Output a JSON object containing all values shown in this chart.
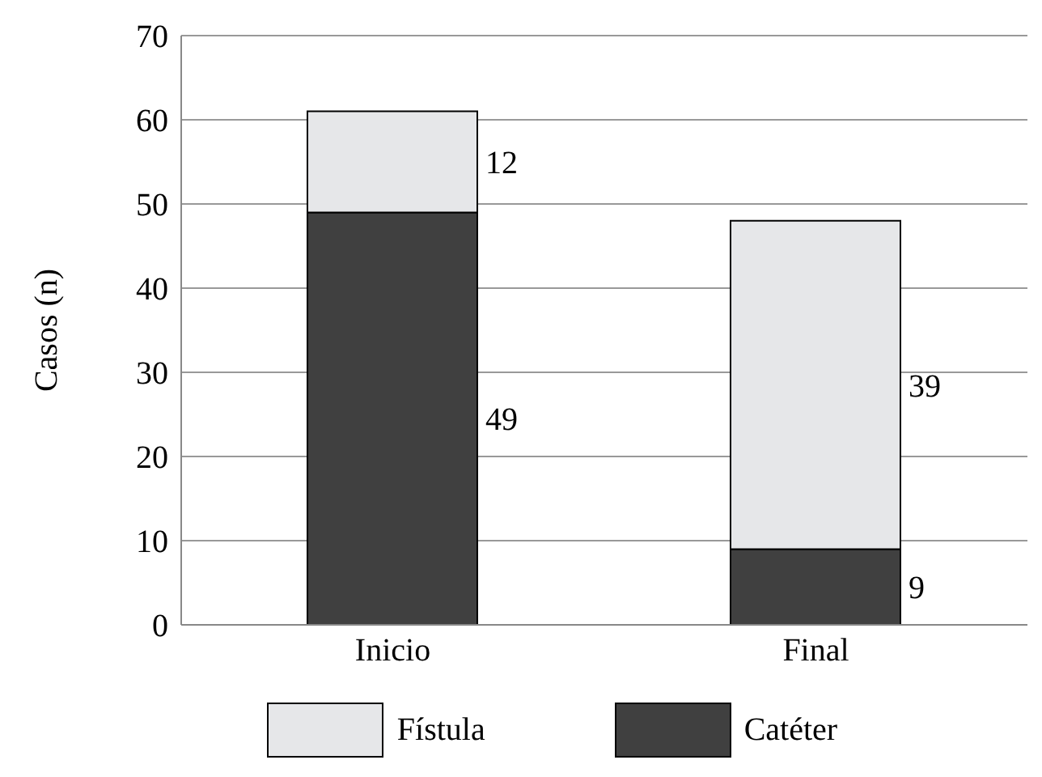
{
  "chart_data": {
    "type": "bar",
    "ylabel": "Casos (n)",
    "categories": [
      "Inicio",
      "Final"
    ],
    "stacked": true,
    "series": [
      {
        "name": "Catéter",
        "color": "#404040",
        "values": [
          49,
          9
        ]
      },
      {
        "name": "Fístula",
        "color": "#e6e7e9",
        "values": [
          12,
          39
        ]
      }
    ],
    "ylim": [
      0,
      70
    ],
    "yticks": [
      0,
      10,
      20,
      30,
      40,
      50,
      60,
      70
    ],
    "grid": "y",
    "legend": "bottom",
    "data_labels": true
  }
}
